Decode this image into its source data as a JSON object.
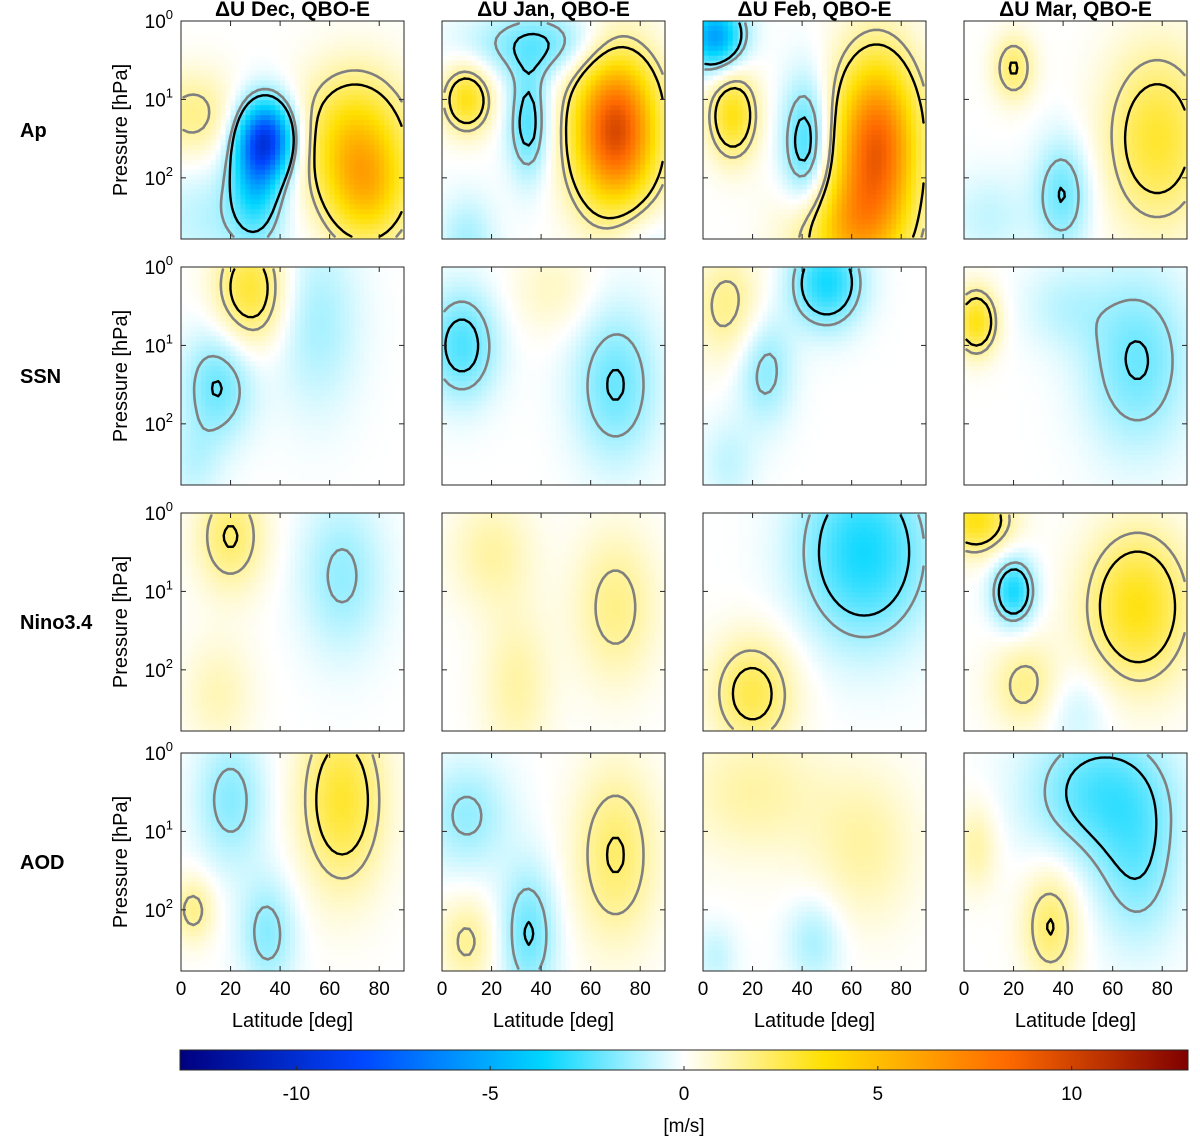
{
  "chart_data": {
    "type": "heatmap",
    "column_titles": [
      "ΔU Dec, QBO-E",
      "ΔU Jan, QBO-E",
      "ΔU Feb, QBO-E",
      "ΔU Mar, QBO-E"
    ],
    "row_labels": [
      "Ap",
      "SSN",
      "Nino3.4",
      "AOD"
    ],
    "ylabel": "Pressure [hPa]",
    "xlabel": "Latitude [deg]",
    "x_ticks": [
      "0",
      "20",
      "40",
      "60",
      "80"
    ],
    "x_tick_values": [
      0,
      20,
      40,
      60,
      80
    ],
    "xlim": [
      0,
      90
    ],
    "y_ticks": [
      {
        "base": "10",
        "exp": "0",
        "value": 1
      },
      {
        "base": "10",
        "exp": "1",
        "value": 10
      },
      {
        "base": "10",
        "exp": "2",
        "value": 100
      }
    ],
    "ylim_hpa": [
      1,
      1000
    ],
    "y_scale": "log, reversed",
    "colorbar": {
      "label": "[m/s]",
      "ticks": [
        "-10",
        "-5",
        "0",
        "5",
        "10"
      ],
      "tick_values": [
        -10,
        -5,
        0,
        5,
        10
      ],
      "range": [
        -13,
        13
      ],
      "colors": [
        "#00007f",
        "#0047ff",
        "#00d6ff",
        "#ffffff",
        "#ffe000",
        "#ff6a00",
        "#7f0000"
      ]
    },
    "contours": [
      {
        "name": "significance level 1",
        "color": "#808080"
      },
      {
        "name": "significance level 2",
        "color": "#000000"
      }
    ],
    "panels": [
      {
        "row": 0,
        "col": 0,
        "blobs": [
          [
            35,
            1.5,
            8,
            0.35,
            -8
          ],
          [
            30,
            2,
            7,
            0.5,
            -4
          ],
          [
            70,
            1.5,
            15,
            0.6,
            4.5
          ],
          [
            75,
            2.2,
            12,
            0.5,
            4
          ],
          [
            5,
            1.2,
            12,
            0.4,
            2
          ],
          [
            15,
            2.5,
            20,
            0.5,
            -1.2
          ]
        ]
      },
      {
        "row": 0,
        "col": 1,
        "blobs": [
          [
            70,
            1.4,
            12,
            0.7,
            10
          ],
          [
            10,
            1.0,
            7,
            0.3,
            4
          ],
          [
            35,
            1.3,
            6,
            0.5,
            -3
          ],
          [
            10,
            2.8,
            8,
            0.4,
            -1.5
          ],
          [
            40,
            0.3,
            20,
            0.3,
            -2.5
          ],
          [
            80,
            2.8,
            10,
            0.4,
            -1
          ]
        ]
      },
      {
        "row": 0,
        "col": 2,
        "blobs": [
          [
            70,
            1.6,
            12,
            0.8,
            9
          ],
          [
            12,
            1.2,
            7,
            0.4,
            4
          ],
          [
            5,
            0.2,
            8,
            0.3,
            -6
          ],
          [
            42,
            1.6,
            7,
            0.6,
            -3.5
          ],
          [
            58,
            2.7,
            15,
            0.5,
            4.5
          ]
        ]
      },
      {
        "row": 0,
        "col": 3,
        "blobs": [
          [
            78,
            1.5,
            15,
            0.8,
            3.5
          ],
          [
            20,
            0.6,
            6,
            0.3,
            2.5
          ],
          [
            40,
            2.2,
            8,
            0.5,
            -2.5
          ],
          [
            10,
            2.5,
            12,
            0.4,
            -1
          ]
        ]
      },
      {
        "row": 1,
        "col": 0,
        "blobs": [
          [
            28,
            0.3,
            10,
            0.5,
            3.5
          ],
          [
            15,
            1.5,
            10,
            0.5,
            -2.5
          ],
          [
            55,
            0.7,
            12,
            0.8,
            -1.5
          ],
          [
            5,
            2.5,
            8,
            0.4,
            -1
          ]
        ]
      },
      {
        "row": 1,
        "col": 1,
        "blobs": [
          [
            8,
            1.0,
            10,
            0.5,
            -3
          ],
          [
            70,
            1.5,
            12,
            0.7,
            -2.5
          ],
          [
            45,
            0.3,
            12,
            0.4,
            1
          ]
        ]
      },
      {
        "row": 1,
        "col": 2,
        "blobs": [
          [
            50,
            0.2,
            10,
            0.4,
            -4
          ],
          [
            25,
            1.3,
            8,
            0.5,
            -2
          ],
          [
            10,
            0.5,
            10,
            0.5,
            2
          ],
          [
            10,
            2.5,
            8,
            0.4,
            -1
          ]
        ]
      },
      {
        "row": 1,
        "col": 3,
        "blobs": [
          [
            5,
            0.7,
            6,
            0.3,
            4
          ],
          [
            70,
            1.2,
            15,
            0.8,
            -2.5
          ],
          [
            40,
            0.5,
            12,
            0.4,
            -1
          ]
        ]
      },
      {
        "row": 2,
        "col": 0,
        "blobs": [
          [
            20,
            0.3,
            10,
            0.5,
            2.5
          ],
          [
            65,
            0.8,
            12,
            0.7,
            -1.8
          ],
          [
            15,
            2.3,
            10,
            0.5,
            1.2
          ]
        ]
      },
      {
        "row": 2,
        "col": 1,
        "blobs": [
          [
            20,
            0.5,
            12,
            0.5,
            1.5
          ],
          [
            30,
            2.2,
            10,
            0.7,
            1.5
          ],
          [
            70,
            1.2,
            12,
            0.7,
            2
          ]
        ]
      },
      {
        "row": 2,
        "col": 2,
        "blobs": [
          [
            65,
            0.5,
            18,
            0.8,
            -4
          ],
          [
            20,
            2.3,
            12,
            0.5,
            3
          ]
        ]
      },
      {
        "row": 2,
        "col": 3,
        "blobs": [
          [
            5,
            0.1,
            10,
            0.3,
            4
          ],
          [
            70,
            1.2,
            15,
            0.7,
            4
          ],
          [
            20,
            1.0,
            6,
            0.3,
            -4
          ],
          [
            25,
            2.2,
            10,
            0.4,
            2
          ],
          [
            45,
            2.5,
            10,
            0.4,
            -1
          ]
        ]
      },
      {
        "row": 3,
        "col": 0,
        "blobs": [
          [
            65,
            0.6,
            12,
            0.8,
            3.5
          ],
          [
            20,
            0.6,
            10,
            0.6,
            -2
          ],
          [
            35,
            2.3,
            8,
            0.5,
            -2
          ],
          [
            5,
            2.0,
            6,
            0.3,
            2
          ]
        ]
      },
      {
        "row": 3,
        "col": 1,
        "blobs": [
          [
            10,
            0.8,
            12,
            0.5,
            -1.8
          ],
          [
            70,
            1.3,
            12,
            0.8,
            2.5
          ],
          [
            35,
            2.3,
            8,
            0.6,
            -2.5
          ],
          [
            10,
            2.4,
            8,
            0.4,
            1.8
          ]
        ]
      },
      {
        "row": 3,
        "col": 2,
        "blobs": [
          [
            20,
            0.5,
            20,
            0.6,
            1.5
          ],
          [
            65,
            1.2,
            15,
            0.7,
            1.5
          ],
          [
            45,
            2.4,
            8,
            0.4,
            -1.5
          ],
          [
            5,
            2.6,
            6,
            0.3,
            -1
          ]
        ]
      },
      {
        "row": 3,
        "col": 3,
        "blobs": [
          [
            55,
            0.5,
            20,
            0.6,
            -3
          ],
          [
            70,
            1.5,
            12,
            0.7,
            -2
          ],
          [
            35,
            2.2,
            8,
            0.5,
            2.5
          ],
          [
            5,
            1.2,
            6,
            0.4,
            1.5
          ]
        ]
      }
    ]
  }
}
